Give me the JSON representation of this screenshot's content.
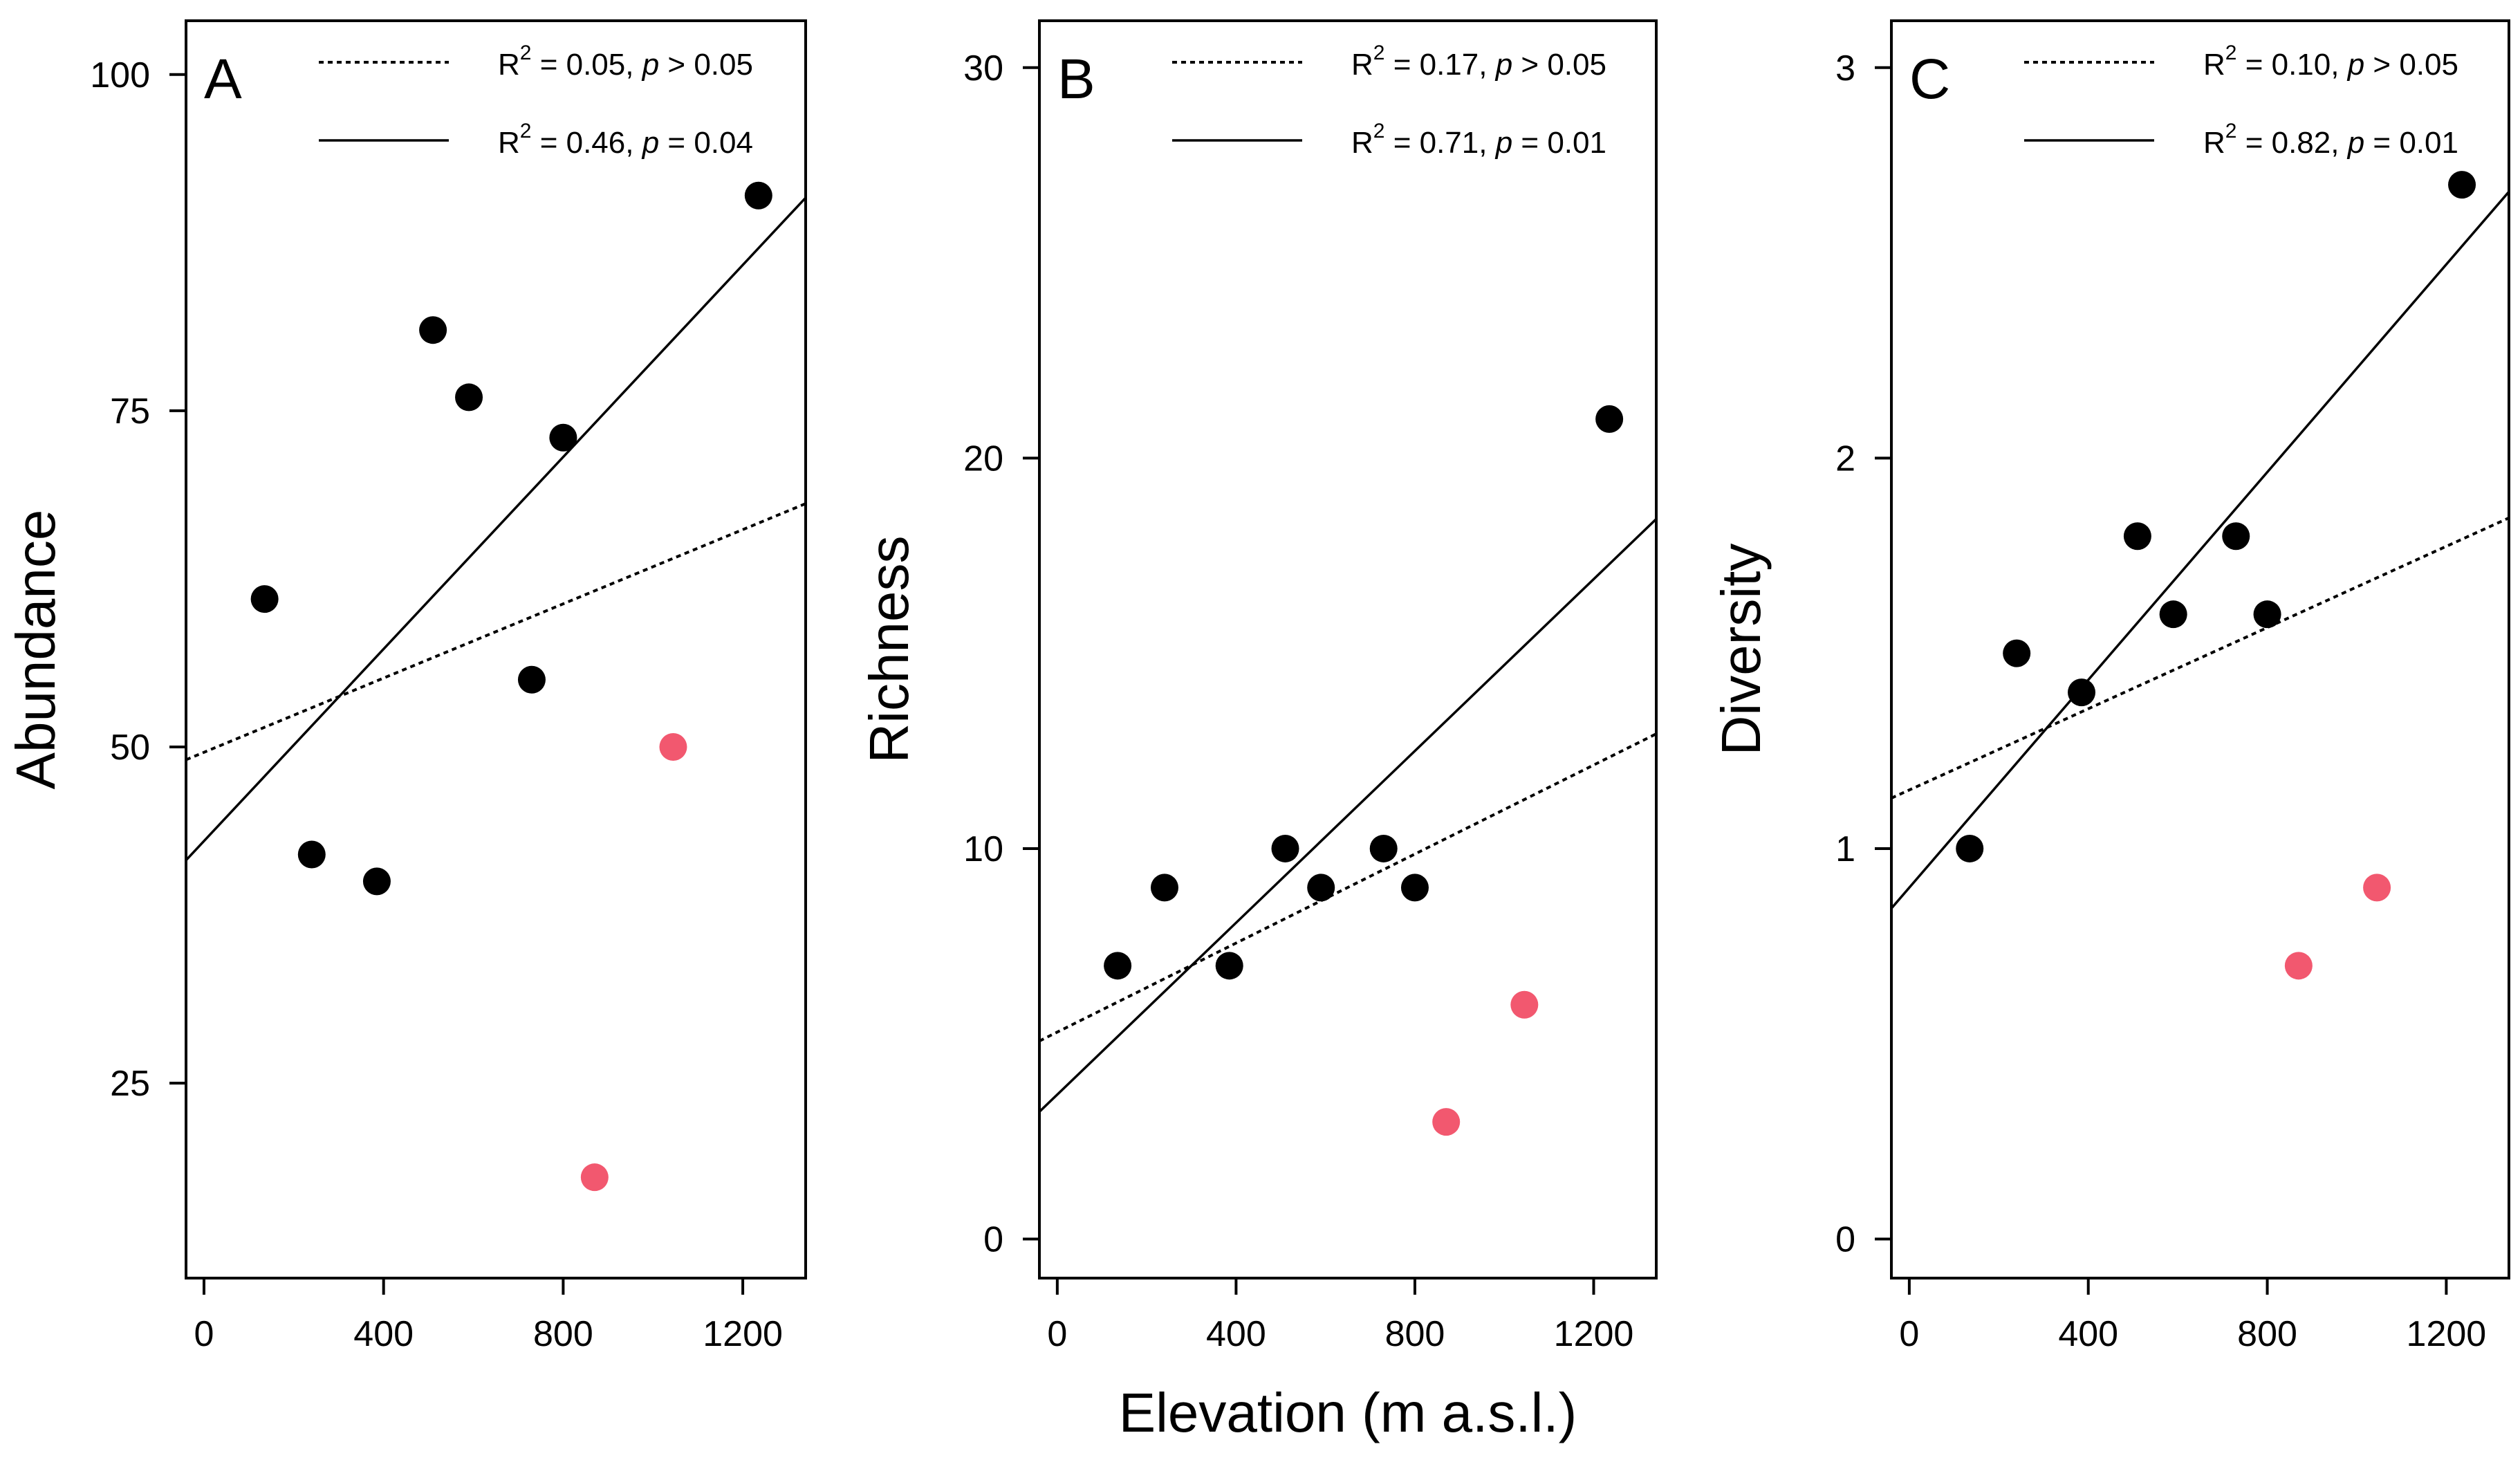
{
  "chart_data": [
    {
      "type": "scatter",
      "panel_label": "A",
      "ylabel": "Abundance",
      "xlabel": "",
      "xlim": [
        -40,
        1340
      ],
      "ylim": [
        10.5,
        104
      ],
      "xticks": [
        0,
        400,
        800,
        1200
      ],
      "yticks": [
        25,
        50,
        75,
        100
      ],
      "grid": false,
      "legend_placement": "top-right",
      "series": [
        {
          "color": "#000000",
          "x": [
            135,
            240,
            385,
            510,
            590,
            730,
            800,
            1235
          ],
          "y": [
            61,
            42,
            40,
            81,
            76,
            55,
            73,
            91
          ]
        },
        {
          "color": "#f2586f",
          "x": [
            870,
            1045
          ],
          "y": [
            18,
            50
          ]
        }
      ],
      "fits": [
        {
          "style": "dotted",
          "label": "R² = 0.05, p > 0.05",
          "r2": "0.05",
          "p_rel": ">",
          "p": "0.05",
          "intercept": 49.6,
          "slope": 0.0138
        },
        {
          "style": "solid",
          "label": "R² = 0.46, p = 0.04",
          "r2": "0.46",
          "p_rel": "=",
          "p": "0.04",
          "intercept": 43,
          "slope": 0.0357
        }
      ]
    },
    {
      "type": "scatter",
      "panel_label": "B",
      "ylabel": "Richness",
      "xlabel": "",
      "xlim": [
        -40,
        1340
      ],
      "ylim": [
        -1,
        31.2
      ],
      "xticks": [
        0,
        400,
        800,
        1200
      ],
      "yticks": [
        0,
        10,
        20,
        30
      ],
      "grid": false,
      "legend_placement": "top-right",
      "series": [
        {
          "color": "#000000",
          "x": [
            135,
            240,
            385,
            510,
            590,
            730,
            800,
            1235
          ],
          "y": [
            7,
            9,
            7,
            10,
            9,
            10,
            9,
            21
          ]
        },
        {
          "color": "#f2586f",
          "x": [
            870,
            1045
          ],
          "y": [
            3,
            6
          ]
        }
      ],
      "fits": [
        {
          "style": "dotted",
          "label": "R² = 0.17, p > 0.05",
          "r2": "0.17",
          "p_rel": ">",
          "p": "0.05",
          "intercept": 5.3,
          "slope": 0.0057
        },
        {
          "style": "solid",
          "label": "R² = 0.71, p = 0.01",
          "r2": "0.71",
          "p_rel": "=",
          "p": "0.01",
          "intercept": 3.7,
          "slope": 0.011
        }
      ]
    },
    {
      "type": "scatter",
      "panel_label": "C",
      "ylabel": "Diversity",
      "xlabel": "",
      "xlim": [
        -40,
        1340
      ],
      "ylim": [
        -0.1,
        3.12
      ],
      "xticks": [
        0,
        400,
        800,
        1200
      ],
      "yticks": [
        0,
        1,
        2,
        3
      ],
      "grid": false,
      "legend_placement": "top-right",
      "series": [
        {
          "color": "#000000",
          "x": [
            135,
            240,
            385,
            510,
            590,
            730,
            800,
            1235
          ],
          "y": [
            1.0,
            1.5,
            1.4,
            1.8,
            1.6,
            1.8,
            1.6,
            2.7
          ]
        },
        {
          "color": "#f2586f",
          "x": [
            870,
            1045
          ],
          "y": [
            0.7,
            0.9
          ]
        }
      ],
      "fits": [
        {
          "style": "dotted",
          "label": "R² = 0.10, p > 0.05",
          "r2": "0.10",
          "p_rel": ">",
          "p": "0.05",
          "intercept": 1.15,
          "slope": 0.00052
        },
        {
          "style": "solid",
          "label": "R² = 0.82, p = 0.01",
          "r2": "0.82",
          "p_rel": "=",
          "p": "0.01",
          "intercept": 0.9,
          "slope": 0.00133
        }
      ]
    }
  ],
  "shared_xlabel": "Elevation (m a.s.l.)"
}
